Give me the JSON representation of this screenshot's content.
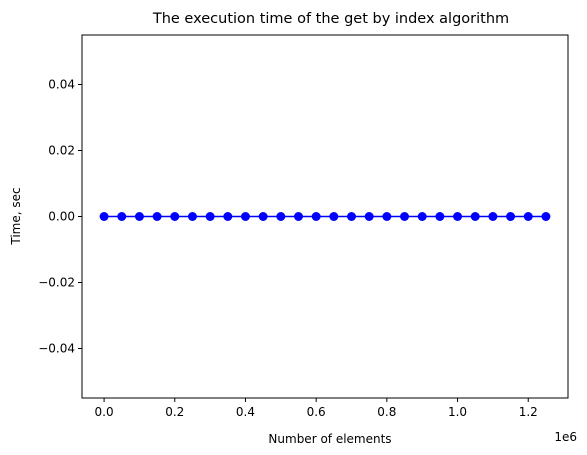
{
  "chart_data": {
    "type": "line",
    "title": "The execution time of the get by index algorithm",
    "xlabel": "Number of elements",
    "ylabel": "Time, sec",
    "x_offset_label": "1e6",
    "xlim": [
      -62500,
      1312500
    ],
    "ylim": [
      -0.055,
      0.055
    ],
    "x_ticks": [
      0.0,
      0.2,
      0.4,
      0.6,
      0.8,
      1.0,
      1.2
    ],
    "x_tick_labels": [
      "0.0",
      "0.2",
      "0.4",
      "0.6",
      "0.8",
      "1.0",
      "1.2"
    ],
    "y_ticks": [
      -0.04,
      -0.02,
      0.0,
      0.02,
      0.04
    ],
    "y_tick_labels": [
      "−0.04",
      "−0.02",
      "0.00",
      "0.02",
      "0.04"
    ],
    "grid": false,
    "legend": null,
    "series": [
      {
        "color": "#0000ff",
        "marker": "circle",
        "x": [
          0,
          50000,
          100000,
          150000,
          200000,
          250000,
          300000,
          350000,
          400000,
          450000,
          500000,
          550000,
          600000,
          650000,
          700000,
          750000,
          800000,
          850000,
          900000,
          950000,
          1000000,
          1050000,
          1100000,
          1150000,
          1200000,
          1250000
        ],
        "y": [
          0,
          0,
          0,
          0,
          0,
          0,
          0,
          0,
          0,
          0,
          0,
          0,
          0,
          0,
          0,
          0,
          0,
          0,
          0,
          0,
          0,
          0,
          0,
          0,
          0,
          0
        ]
      }
    ]
  }
}
